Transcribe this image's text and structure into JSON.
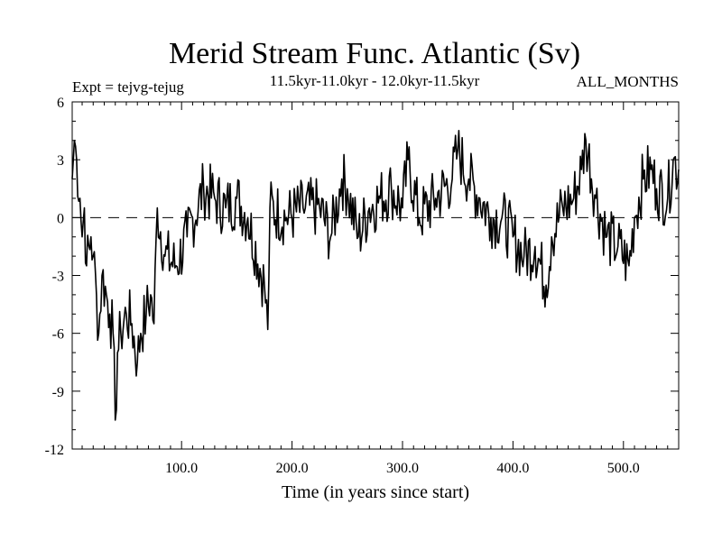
{
  "chart_data": {
    "type": "line",
    "title": "Merid Stream Func. Atlantic (Sv)",
    "subtitle": "11.5kyr-11.0kyr - 12.0kyr-11.5kyr",
    "left_label": "Expt = tejvg-tejug",
    "right_label": "ALL_MONTHS",
    "xlabel": "Time (in years since start)",
    "ylabel": "",
    "xlim": [
      1,
      550
    ],
    "ylim": [
      -12,
      6
    ],
    "x_ticks": [
      100,
      200,
      300,
      400,
      500
    ],
    "x_tick_labels": [
      "100.0",
      "200.0",
      "300.0",
      "400.0",
      "500.0"
    ],
    "y_ticks": [
      6,
      3,
      0,
      -3,
      -6,
      -9,
      -12
    ],
    "y_tick_labels": [
      "6",
      "3",
      "0",
      "-3",
      "-6",
      "-9",
      "-12"
    ],
    "reference_line": 0,
    "line_color": "#000000",
    "series": [
      {
        "name": "Merid Stream Func. Atlantic",
        "anchors": [
          [
            1,
            2.0
          ],
          [
            3,
            4.0
          ],
          [
            5,
            3.0
          ],
          [
            8,
            1.0
          ],
          [
            10,
            -1.0
          ],
          [
            12,
            0.5
          ],
          [
            14,
            -2.5
          ],
          [
            18,
            -1.0
          ],
          [
            20,
            -2.0
          ],
          [
            23,
            -4.0
          ],
          [
            25,
            -6.0
          ],
          [
            28,
            -3.0
          ],
          [
            32,
            -4.0
          ],
          [
            35,
            -5.0
          ],
          [
            38,
            -6.0
          ],
          [
            40,
            -10.5
          ],
          [
            42,
            -7.0
          ],
          [
            45,
            -6.0
          ],
          [
            50,
            -5.0
          ],
          [
            55,
            -5.5
          ],
          [
            60,
            -7.5
          ],
          [
            63,
            -6.0
          ],
          [
            68,
            -5.0
          ],
          [
            72,
            -4.0
          ],
          [
            75,
            -5.5
          ],
          [
            78,
            0.5
          ],
          [
            85,
            -2.0
          ],
          [
            95,
            -2.5
          ],
          [
            105,
            -1.0
          ],
          [
            120,
            1.5
          ],
          [
            130,
            1.0
          ],
          [
            140,
            0.5
          ],
          [
            150,
            1.0
          ],
          [
            160,
            0.0
          ],
          [
            175,
            -3.5
          ],
          [
            178,
            -5.8
          ],
          [
            180,
            0.5
          ],
          [
            195,
            0.0
          ],
          [
            210,
            0.5
          ],
          [
            225,
            0.5
          ],
          [
            235,
            -1.0
          ],
          [
            245,
            2.0
          ],
          [
            250,
            1.5
          ],
          [
            260,
            -1.0
          ],
          [
            270,
            0.5
          ],
          [
            280,
            1.0
          ],
          [
            290,
            1.5
          ],
          [
            300,
            0.5
          ],
          [
            305,
            3.0
          ],
          [
            315,
            0.0
          ],
          [
            330,
            1.0
          ],
          [
            345,
            2.0
          ],
          [
            350,
            3.5
          ],
          [
            360,
            2.0
          ],
          [
            370,
            1.0
          ],
          [
            380,
            0.0
          ],
          [
            390,
            0.0
          ],
          [
            400,
            -1.0
          ],
          [
            410,
            -2.0
          ],
          [
            420,
            -1.5
          ],
          [
            430,
            -3.5
          ],
          [
            435,
            -1.0
          ],
          [
            445,
            0.5
          ],
          [
            455,
            1.0
          ],
          [
            462,
            2.5
          ],
          [
            466,
            4.0
          ],
          [
            475,
            1.0
          ],
          [
            485,
            -1.0
          ],
          [
            495,
            -1.5
          ],
          [
            505,
            -2.5
          ],
          [
            510,
            0.0
          ],
          [
            518,
            2.0
          ],
          [
            525,
            2.5
          ],
          [
            530,
            1.5
          ],
          [
            540,
            1.0
          ],
          [
            545,
            3.0
          ],
          [
            550,
            2.5
          ]
        ]
      }
    ]
  }
}
